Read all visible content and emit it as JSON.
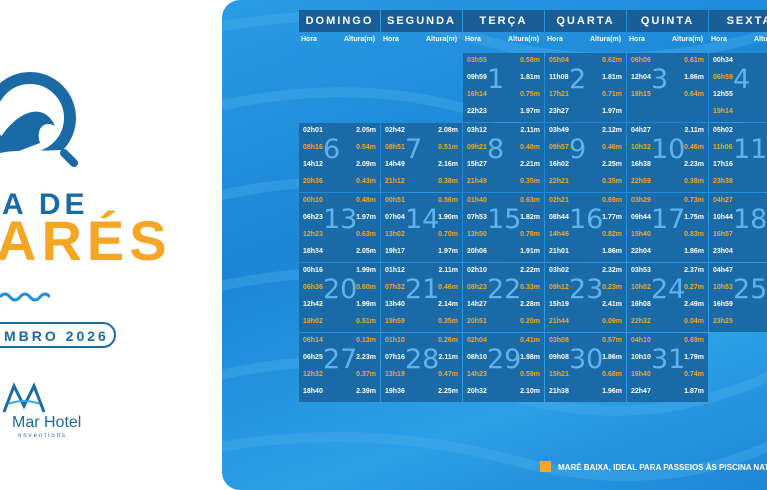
{
  "brand": {
    "title_line1": "A DE",
    "title_line2": "ARÉS",
    "month": "MBRO 2026",
    "hotel_name": "Mar Hotel",
    "hotel_sub": "onventions"
  },
  "table": {
    "days": [
      "DOMINGO",
      "SEGUNDA",
      "TERÇA",
      "QUARTA",
      "QUINTA",
      "SEXTA"
    ],
    "hora_label": "Hora",
    "altura_label": "Altura(m)"
  },
  "colors": {
    "low_tide": "#f5a623",
    "cell": "#1b6aa8",
    "header": "#1a5e97"
  },
  "weeks": [
    [
      null,
      null,
      {
        "day": "1",
        "tides": [
          {
            "t": "03h55",
            "h": "0.58m",
            "low": true
          },
          {
            "t": "09h59",
            "h": "1.81m",
            "low": false
          },
          {
            "t": "16h14",
            "h": "0.75m",
            "low": true
          },
          {
            "t": "22h23",
            "h": "1.97m",
            "low": false
          }
        ]
      },
      {
        "day": "2",
        "tides": [
          {
            "t": "05h04",
            "h": "0.62m",
            "low": true
          },
          {
            "t": "11h08",
            "h": "1.81m",
            "low": false
          },
          {
            "t": "17h21",
            "h": "0.71m",
            "low": true
          },
          {
            "t": "23h27",
            "h": "1.97m",
            "low": false
          }
        ]
      },
      {
        "day": "3",
        "tides": [
          {
            "t": "06h06",
            "h": "0.61m",
            "low": true
          },
          {
            "t": "12h04",
            "h": "1.86m",
            "low": false
          },
          {
            "t": "18h15",
            "h": "0.64m",
            "low": true
          },
          {
            "t": "",
            "h": "",
            "low": false
          }
        ]
      },
      {
        "day": "4",
        "tides": [
          {
            "t": "00h34",
            "h": "",
            "low": false
          },
          {
            "t": "06h59",
            "h": "",
            "low": true
          },
          {
            "t": "12h55",
            "h": "",
            "low": false
          },
          {
            "t": "19h14",
            "h": "",
            "low": true
          }
        ]
      }
    ],
    [
      {
        "day": "6",
        "tides": [
          {
            "t": "02h01",
            "h": "2.05m",
            "low": false
          },
          {
            "t": "08h16",
            "h": "0.54m",
            "low": true
          },
          {
            "t": "14h12",
            "h": "2.09m",
            "low": false
          },
          {
            "t": "20h36",
            "h": "0.43m",
            "low": true
          }
        ]
      },
      {
        "day": "7",
        "tides": [
          {
            "t": "02h42",
            "h": "2.08m",
            "low": false
          },
          {
            "t": "08h51",
            "h": "0.51m",
            "low": true
          },
          {
            "t": "14h49",
            "h": "2.16m",
            "low": false
          },
          {
            "t": "21h12",
            "h": "0.38m",
            "low": true
          }
        ]
      },
      {
        "day": "8",
        "tides": [
          {
            "t": "03h12",
            "h": "2.11m",
            "low": false
          },
          {
            "t": "09h21",
            "h": "0.48m",
            "low": true
          },
          {
            "t": "15h27",
            "h": "2.21m",
            "low": false
          },
          {
            "t": "21h49",
            "h": "0.35m",
            "low": true
          }
        ]
      },
      {
        "day": "9",
        "tides": [
          {
            "t": "03h49",
            "h": "2.12m",
            "low": false
          },
          {
            "t": "09h57",
            "h": "0.46m",
            "low": true
          },
          {
            "t": "16h02",
            "h": "2.25m",
            "low": false
          },
          {
            "t": "22h21",
            "h": "0.35m",
            "low": true
          }
        ]
      },
      {
        "day": "10",
        "tides": [
          {
            "t": "04h27",
            "h": "2.11m",
            "low": false
          },
          {
            "t": "10h32",
            "h": "0.46m",
            "low": true
          },
          {
            "t": "16h38",
            "h": "2.23m",
            "low": false
          },
          {
            "t": "22h59",
            "h": "0.38m",
            "low": true
          }
        ]
      },
      {
        "day": "11",
        "tides": [
          {
            "t": "05h02",
            "h": "",
            "low": false
          },
          {
            "t": "11h06",
            "h": "",
            "low": true
          },
          {
            "t": "17h16",
            "h": "",
            "low": false
          },
          {
            "t": "23h38",
            "h": "",
            "low": true
          }
        ]
      }
    ],
    [
      {
        "day": "13",
        "tides": [
          {
            "t": "00h10",
            "h": "0.48m",
            "low": true
          },
          {
            "t": "06h23",
            "h": "1.97m",
            "low": false
          },
          {
            "t": "12h23",
            "h": "0.63m",
            "low": true
          },
          {
            "t": "18h34",
            "h": "2.05m",
            "low": false
          }
        ]
      },
      {
        "day": "14",
        "tides": [
          {
            "t": "00h51",
            "h": "0.56m",
            "low": true
          },
          {
            "t": "07h04",
            "h": "1.90m",
            "low": false
          },
          {
            "t": "13h02",
            "h": "0.70m",
            "low": true
          },
          {
            "t": "19h17",
            "h": "1.97m",
            "low": false
          }
        ]
      },
      {
        "day": "15",
        "tides": [
          {
            "t": "01h40",
            "h": "0.63m",
            "low": true
          },
          {
            "t": "07h53",
            "h": "1.82m",
            "low": false
          },
          {
            "t": "13h50",
            "h": "0.78m",
            "low": true
          },
          {
            "t": "20h06",
            "h": "1.91m",
            "low": false
          }
        ]
      },
      {
        "day": "16",
        "tides": [
          {
            "t": "02h21",
            "h": "0.69m",
            "low": true
          },
          {
            "t": "08h44",
            "h": "1.77m",
            "low": false
          },
          {
            "t": "14h46",
            "h": "0.82m",
            "low": true
          },
          {
            "t": "21h01",
            "h": "1.86m",
            "low": false
          }
        ]
      },
      {
        "day": "17",
        "tides": [
          {
            "t": "03h29",
            "h": "0.73m",
            "low": true
          },
          {
            "t": "09h44",
            "h": "1.75m",
            "low": false
          },
          {
            "t": "15h40",
            "h": "0.83m",
            "low": true
          },
          {
            "t": "22h04",
            "h": "1.86m",
            "low": false
          }
        ]
      },
      {
        "day": "18",
        "tides": [
          {
            "t": "04h27",
            "h": "",
            "low": true
          },
          {
            "t": "10h44",
            "h": "",
            "low": false
          },
          {
            "t": "16h57",
            "h": "",
            "low": true
          },
          {
            "t": "23h04",
            "h": "",
            "low": false
          }
        ]
      }
    ],
    [
      {
        "day": "20",
        "tides": [
          {
            "t": "00h16",
            "h": "1.99m",
            "low": false
          },
          {
            "t": "06h36",
            "h": "0.60m",
            "low": true
          },
          {
            "t": "12h42",
            "h": "1.99m",
            "low": false
          },
          {
            "t": "19h02",
            "h": "0.51m",
            "low": true
          }
        ]
      },
      {
        "day": "21",
        "tides": [
          {
            "t": "01h12",
            "h": "2.11m",
            "low": false
          },
          {
            "t": "07h32",
            "h": "0.46m",
            "low": true
          },
          {
            "t": "13h40",
            "h": "2.14m",
            "low": false
          },
          {
            "t": "19h59",
            "h": "0.35m",
            "low": true
          }
        ]
      },
      {
        "day": "22",
        "tides": [
          {
            "t": "02h10",
            "h": "2.22m",
            "low": false
          },
          {
            "t": "08h23",
            "h": "0.33m",
            "low": true
          },
          {
            "t": "14h27",
            "h": "2.28m",
            "low": false
          },
          {
            "t": "20h51",
            "h": "0.20m",
            "low": true
          }
        ]
      },
      {
        "day": "23",
        "tides": [
          {
            "t": "03h02",
            "h": "2.32m",
            "low": false
          },
          {
            "t": "09h12",
            "h": "0.23m",
            "low": true
          },
          {
            "t": "15h19",
            "h": "2.41m",
            "low": false
          },
          {
            "t": "21h44",
            "h": "0.09m",
            "low": true
          }
        ]
      },
      {
        "day": "24",
        "tides": [
          {
            "t": "03h53",
            "h": "2.37m",
            "low": false
          },
          {
            "t": "10h02",
            "h": "0.27m",
            "low": true
          },
          {
            "t": "16h08",
            "h": "2.49m",
            "low": false
          },
          {
            "t": "22h32",
            "h": "0.04m",
            "low": true
          }
        ]
      },
      {
        "day": "25",
        "tides": [
          {
            "t": "04h47",
            "h": "",
            "low": false
          },
          {
            "t": "10h53",
            "h": "",
            "low": true
          },
          {
            "t": "16h59",
            "h": "",
            "low": false
          },
          {
            "t": "23h25",
            "h": "",
            "low": true
          }
        ]
      }
    ],
    [
      {
        "day": "27",
        "tides": [
          {
            "t": "06h14",
            "h": "0.13m",
            "low": true
          },
          {
            "t": "06h25",
            "h": "2.23m",
            "low": false
          },
          {
            "t": "12h32",
            "h": "0.37m",
            "low": true
          },
          {
            "t": "18h40",
            "h": "2.39m",
            "low": false
          }
        ]
      },
      {
        "day": "28",
        "tides": [
          {
            "t": "01h10",
            "h": "0.26m",
            "low": true
          },
          {
            "t": "07h16",
            "h": "2.11m",
            "low": false
          },
          {
            "t": "13h19",
            "h": "0.47m",
            "low": true
          },
          {
            "t": "19h36",
            "h": "2.25m",
            "low": false
          }
        ]
      },
      {
        "day": "29",
        "tides": [
          {
            "t": "02h04",
            "h": "0.41m",
            "low": true
          },
          {
            "t": "08h10",
            "h": "1.98m",
            "low": false
          },
          {
            "t": "14h23",
            "h": "0.59m",
            "low": true
          },
          {
            "t": "20h32",
            "h": "2.10m",
            "low": false
          }
        ]
      },
      {
        "day": "30",
        "tides": [
          {
            "t": "03h08",
            "h": "0.57m",
            "low": true
          },
          {
            "t": "09h08",
            "h": "1.86m",
            "low": false
          },
          {
            "t": "15h21",
            "h": "0.68m",
            "low": true
          },
          {
            "t": "21h38",
            "h": "1.96m",
            "low": false
          }
        ]
      },
      {
        "day": "31",
        "tides": [
          {
            "t": "04h10",
            "h": "0.69m",
            "low": true
          },
          {
            "t": "10h10",
            "h": "1.79m",
            "low": false
          },
          {
            "t": "16h40",
            "h": "0.74m",
            "low": true
          },
          {
            "t": "22h47",
            "h": "1.87m",
            "low": false
          }
        ]
      },
      null
    ]
  ],
  "legend": {
    "text": "MARÉ BAIXA, IDEAL PARA PASSEIOS ÀS PISCINA NATU"
  }
}
